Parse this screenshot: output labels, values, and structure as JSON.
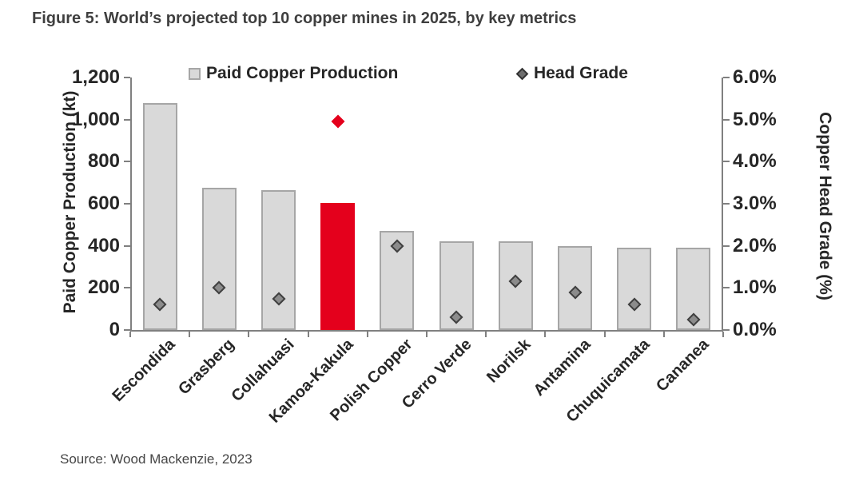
{
  "chart_data": {
    "type": "bar",
    "title": "Figure 5: World’s projected top 10 copper mines in 2025, by key metrics",
    "source": "Source: Wood Mackenzie, 2023",
    "categories": [
      "Escondida",
      "Grasberg",
      "Collahuasi",
      "Kamoa-Kakula",
      "Polish Copper",
      "Cerro Verde",
      "Norilsk",
      "Antamina",
      "Chuquicamata",
      "Cananea"
    ],
    "series": [
      {
        "name": "Paid Copper Production",
        "chart_type": "bar",
        "axis": "left",
        "unit": "kt",
        "values": [
          1080,
          675,
          665,
          605,
          470,
          420,
          420,
          400,
          390,
          390
        ],
        "highlight_index": 3
      },
      {
        "name": "Head Grade",
        "chart_type": "scatter",
        "axis": "right",
        "unit": "%",
        "values": [
          0.6,
          1.0,
          0.75,
          4.95,
          2.0,
          0.3,
          1.15,
          0.9,
          0.6,
          0.25
        ],
        "highlight_index": 3
      }
    ],
    "left_axis": {
      "label": "Paid Copper Production (kt)",
      "min": 0,
      "max": 1200,
      "tick_step": 200,
      "tick_labels": [
        "1,200",
        "1,000",
        "800",
        "600",
        "400",
        "200",
        "0"
      ]
    },
    "right_axis": {
      "label": "Copper Head Grade (%)",
      "min": 0,
      "max": 6,
      "tick_step": 1,
      "tick_labels": [
        "6.0%",
        "5.0%",
        "4.0%",
        "3.0%",
        "2.0%",
        "1.0%",
        "0.0%"
      ]
    },
    "legend": {
      "position": "top-inside",
      "items": [
        {
          "label": "Paid Copper Production",
          "marker": "square"
        },
        {
          "label": "Head Grade",
          "marker": "diamond"
        }
      ]
    },
    "layout_hints": {
      "grid": "off",
      "highlight_category": "Kamoa-Kakula"
    },
    "colors": {
      "bar_fill": "#d9d9d9",
      "bar_border": "#a6a6a6",
      "highlight_red": "#e4001c",
      "marker_fill": "#8c8c8c",
      "marker_border": "#404040",
      "axis_line": "#808080",
      "text": "#262626"
    }
  }
}
